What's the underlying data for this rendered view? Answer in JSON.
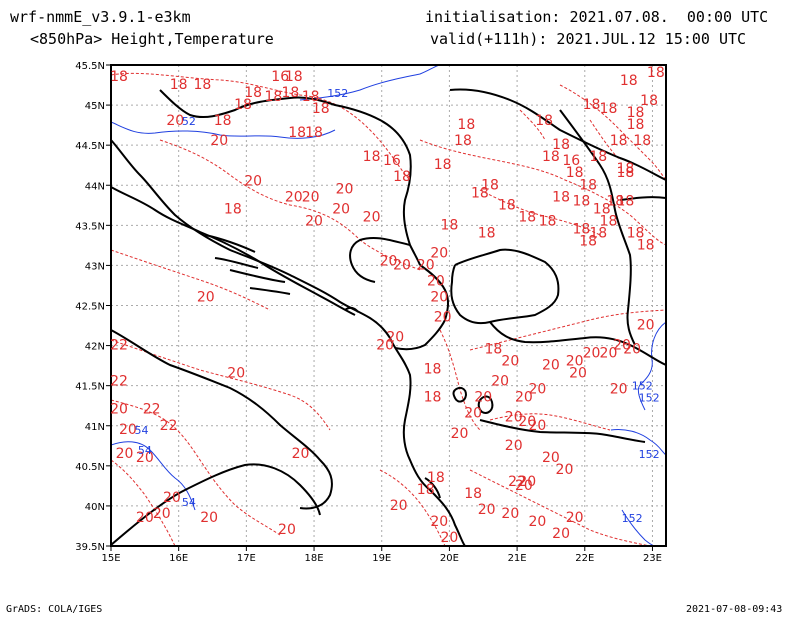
{
  "header": {
    "model": "wrf-nmmE_v3.9.1-e3km",
    "field": "<850hPa> Height,Temperature",
    "init": "initialisation: 2021.07.08.  00:00 UTC",
    "valid": "valid(+111h): 2021.JUL.12 15:00 UTC"
  },
  "footer": {
    "credit": "GrADS: COLA/IGES",
    "timestamp": "2021-07-08-09:43"
  },
  "map": {
    "lon_range": [
      15,
      23.2
    ],
    "lat_range": [
      39.5,
      45.5
    ],
    "lon_ticks": [
      "15E",
      "16E",
      "17E",
      "18E",
      "19E",
      "20E",
      "21E",
      "22E",
      "23E"
    ],
    "lat_ticks": [
      "39.5N",
      "40N",
      "40.5N",
      "41N",
      "41.5N",
      "42N",
      "42.5N",
      "43N",
      "43.5N",
      "44N",
      "44.5N",
      "45N",
      "45.5N"
    ],
    "temperature_color": "#e03030",
    "height_color": "#2040e0",
    "coast_color": "#000000"
  },
  "labels_temp": [
    {
      "t": "18",
      "lon": 15.05,
      "lat": 45.3
    },
    {
      "t": "18",
      "lon": 16.0,
      "lat": 45.2
    },
    {
      "t": "18",
      "lon": 16.35,
      "lat": 45.2
    },
    {
      "t": "16",
      "lon": 17.5,
      "lat": 45.3
    },
    {
      "t": "18",
      "lon": 17.7,
      "lat": 45.3
    },
    {
      "t": "18",
      "lon": 17.1,
      "lat": 45.1
    },
    {
      "t": "18",
      "lon": 17.4,
      "lat": 45.05
    },
    {
      "t": "18",
      "lon": 17.65,
      "lat": 45.1
    },
    {
      "t": "18",
      "lon": 17.95,
      "lat": 45.05
    },
    {
      "t": "18",
      "lon": 16.95,
      "lat": 44.95
    },
    {
      "t": "18",
      "lon": 18.1,
      "lat": 44.9
    },
    {
      "t": "18",
      "lon": 16.65,
      "lat": 44.75
    },
    {
      "t": "18",
      "lon": 17.75,
      "lat": 44.6
    },
    {
      "t": "18",
      "lon": 18.0,
      "lat": 44.6
    },
    {
      "t": "20",
      "lon": 15.95,
      "lat": 44.75
    },
    {
      "t": "20",
      "lon": 16.6,
      "lat": 44.5
    },
    {
      "t": "20",
      "lon": 17.1,
      "lat": 44.0
    },
    {
      "t": "18",
      "lon": 18.85,
      "lat": 44.3
    },
    {
      "t": "16",
      "lon": 19.15,
      "lat": 44.25
    },
    {
      "t": "18",
      "lon": 19.3,
      "lat": 44.05
    },
    {
      "t": "18",
      "lon": 20.25,
      "lat": 44.7
    },
    {
      "t": "18",
      "lon": 20.2,
      "lat": 44.5
    },
    {
      "t": "18",
      "lon": 19.9,
      "lat": 44.2
    },
    {
      "t": "18",
      "lon": 20.45,
      "lat": 43.85
    },
    {
      "t": "18",
      "lon": 20.6,
      "lat": 43.95
    },
    {
      "t": "20",
      "lon": 17.7,
      "lat": 43.8
    },
    {
      "t": "20",
      "lon": 17.95,
      "lat": 43.8
    },
    {
      "t": "20",
      "lon": 18.45,
      "lat": 43.9
    },
    {
      "t": "20",
      "lon": 18.4,
      "lat": 43.65
    },
    {
      "t": "20",
      "lon": 18.0,
      "lat": 43.5
    },
    {
      "t": "20",
      "lon": 18.85,
      "lat": 43.55
    },
    {
      "t": "18",
      "lon": 16.8,
      "lat": 43.65
    },
    {
      "t": "20",
      "lon": 19.85,
      "lat": 43.1
    },
    {
      "t": "20",
      "lon": 19.1,
      "lat": 43.0
    },
    {
      "t": "20",
      "lon": 19.3,
      "lat": 42.95
    },
    {
      "t": "20",
      "lon": 19.65,
      "lat": 42.95
    },
    {
      "t": "20",
      "lon": 19.8,
      "lat": 42.75
    },
    {
      "t": "20",
      "lon": 19.85,
      "lat": 42.55
    },
    {
      "t": "20",
      "lon": 19.9,
      "lat": 42.3
    },
    {
      "t": "20",
      "lon": 16.4,
      "lat": 42.55
    },
    {
      "t": "20",
      "lon": 19.2,
      "lat": 42.05
    },
    {
      "t": "22",
      "lon": 15.05,
      "lat": 41.95
    },
    {
      "t": "22",
      "lon": 15.1,
      "lat": 41.5
    },
    {
      "t": "20",
      "lon": 16.85,
      "lat": 41.6
    },
    {
      "t": "20",
      "lon": 15.1,
      "lat": 41.15
    },
    {
      "t": "22",
      "lon": 15.6,
      "lat": 41.15
    },
    {
      "t": "20",
      "lon": 15.25,
      "lat": 40.9
    },
    {
      "t": "22",
      "lon": 15.85,
      "lat": 40.95
    },
    {
      "t": "20",
      "lon": 15.2,
      "lat": 40.6
    },
    {
      "t": "20",
      "lon": 15.5,
      "lat": 40.55
    },
    {
      "t": "20",
      "lon": 17.8,
      "lat": 40.6
    },
    {
      "t": "20",
      "lon": 15.9,
      "lat": 40.05
    },
    {
      "t": "20",
      "lon": 15.75,
      "lat": 39.85
    },
    {
      "t": "20",
      "lon": 15.5,
      "lat": 39.8
    },
    {
      "t": "20",
      "lon": 16.45,
      "lat": 39.8
    },
    {
      "t": "20",
      "lon": 17.6,
      "lat": 39.65
    },
    {
      "t": "18",
      "lon": 19.75,
      "lat": 41.65
    },
    {
      "t": "18",
      "lon": 20.65,
      "lat": 41.9
    },
    {
      "t": "18",
      "lon": 19.75,
      "lat": 41.3
    },
    {
      "t": "20",
      "lon": 20.5,
      "lat": 41.3
    },
    {
      "t": "20",
      "lon": 20.75,
      "lat": 41.5
    },
    {
      "t": "20",
      "lon": 20.9,
      "lat": 41.75
    },
    {
      "t": "20",
      "lon": 20.35,
      "lat": 41.1
    },
    {
      "t": "20",
      "lon": 21.1,
      "lat": 41.3
    },
    {
      "t": "20",
      "lon": 21.3,
      "lat": 41.4
    },
    {
      "t": "20",
      "lon": 21.5,
      "lat": 41.7
    },
    {
      "t": "20",
      "lon": 20.95,
      "lat": 41.05
    },
    {
      "t": "20",
      "lon": 21.15,
      "lat": 41.0
    },
    {
      "t": "20",
      "lon": 21.3,
      "lat": 40.95
    },
    {
      "t": "20",
      "lon": 20.95,
      "lat": 40.7
    },
    {
      "t": "20",
      "lon": 21.5,
      "lat": 40.55
    },
    {
      "t": "20",
      "lon": 21.7,
      "lat": 40.4
    },
    {
      "t": "20",
      "lon": 21.1,
      "lat": 40.2
    },
    {
      "t": "20",
      "lon": 22.1,
      "lat": 41.85
    },
    {
      "t": "20",
      "lon": 22.35,
      "lat": 41.85
    },
    {
      "t": "20",
      "lon": 22.55,
      "lat": 41.95
    },
    {
      "t": "20",
      "lon": 21.85,
      "lat": 41.75
    },
    {
      "t": "20",
      "lon": 21.9,
      "lat": 41.6
    },
    {
      "t": "20",
      "lon": 22.7,
      "lat": 41.9
    },
    {
      "t": "20",
      "lon": 22.9,
      "lat": 42.2
    },
    {
      "t": "20",
      "lon": 22.5,
      "lat": 41.4
    },
    {
      "t": "18",
      "lon": 19.8,
      "lat": 40.3
    },
    {
      "t": "18",
      "lon": 19.65,
      "lat": 40.15
    },
    {
      "t": "18",
      "lon": 20.35,
      "lat": 40.1
    },
    {
      "t": "20",
      "lon": 19.25,
      "lat": 39.95
    },
    {
      "t": "20",
      "lon": 19.85,
      "lat": 39.75
    },
    {
      "t": "20",
      "lon": 20.0,
      "lat": 39.55
    },
    {
      "t": "20",
      "lon": 20.55,
      "lat": 39.9
    },
    {
      "t": "20",
      "lon": 20.9,
      "lat": 39.85
    },
    {
      "t": "20",
      "lon": 21.3,
      "lat": 39.75
    },
    {
      "t": "20",
      "lon": 21.85,
      "lat": 39.8
    },
    {
      "t": "20",
      "lon": 21.65,
      "lat": 39.6
    },
    {
      "t": "22",
      "lon": 21.0,
      "lat": 40.25
    },
    {
      "t": "20",
      "lon": 21.15,
      "lat": 40.25
    },
    {
      "t": "18",
      "lon": 21.4,
      "lat": 44.75
    },
    {
      "t": "18",
      "lon": 21.65,
      "lat": 44.45
    },
    {
      "t": "18",
      "lon": 21.5,
      "lat": 44.3
    },
    {
      "t": "16",
      "lon": 21.8,
      "lat": 44.25
    },
    {
      "t": "18",
      "lon": 22.2,
      "lat": 44.3
    },
    {
      "t": "18",
      "lon": 21.85,
      "lat": 44.1
    },
    {
      "t": "18",
      "lon": 22.6,
      "lat": 44.15
    },
    {
      "t": "18",
      "lon": 22.05,
      "lat": 43.95
    },
    {
      "t": "18",
      "lon": 21.65,
      "lat": 43.8
    },
    {
      "t": "18",
      "lon": 21.95,
      "lat": 43.75
    },
    {
      "t": "18",
      "lon": 22.25,
      "lat": 43.65
    },
    {
      "t": "18",
      "lon": 22.45,
      "lat": 43.75
    },
    {
      "t": "18",
      "lon": 22.35,
      "lat": 43.5
    },
    {
      "t": "18",
      "lon": 21.95,
      "lat": 43.4
    },
    {
      "t": "18",
      "lon": 21.45,
      "lat": 43.5
    },
    {
      "t": "18",
      "lon": 22.05,
      "lat": 43.25
    },
    {
      "t": "18",
      "lon": 22.2,
      "lat": 43.35
    },
    {
      "t": "18",
      "lon": 22.6,
      "lat": 43.75
    },
    {
      "t": "18",
      "lon": 22.75,
      "lat": 43.35
    },
    {
      "t": "18",
      "lon": 22.9,
      "lat": 43.2
    },
    {
      "t": "18",
      "lon": 21.15,
      "lat": 43.55
    },
    {
      "t": "18",
      "lon": 22.1,
      "lat": 44.95
    },
    {
      "t": "18",
      "lon": 22.35,
      "lat": 44.9
    },
    {
      "t": "18",
      "lon": 22.5,
      "lat": 44.5
    },
    {
      "t": "18",
      "lon": 22.75,
      "lat": 44.7
    },
    {
      "t": "18",
      "lon": 22.85,
      "lat": 44.5
    },
    {
      "t": "18",
      "lon": 22.95,
      "lat": 45.0
    },
    {
      "t": "18",
      "lon": 22.65,
      "lat": 45.25
    },
    {
      "t": "18",
      "lon": 23.05,
      "lat": 45.35
    },
    {
      "t": "18",
      "lon": 22.75,
      "lat": 44.85
    },
    {
      "t": "18",
      "lon": 22.6,
      "lat": 44.1
    },
    {
      "t": "18",
      "lon": 20.0,
      "lat": 43.45
    },
    {
      "t": "18",
      "lon": 20.55,
      "lat": 43.35
    },
    {
      "t": "18",
      "lon": 20.85,
      "lat": 43.7
    },
    {
      "t": "20",
      "lon": 19.05,
      "lat": 41.95
    },
    {
      "t": "20",
      "lon": 20.15,
      "lat": 40.85
    }
  ],
  "labels_height": [
    {
      "t": "152",
      "lon": 18.35,
      "lat": 45.1
    },
    {
      "t": "52",
      "lon": 16.15,
      "lat": 44.75
    },
    {
      "t": "152",
      "lon": 22.85,
      "lat": 41.45
    },
    {
      "t": "152",
      "lon": 22.95,
      "lat": 41.3
    },
    {
      "t": "152",
      "lon": 22.95,
      "lat": 40.6
    },
    {
      "t": "152",
      "lon": 22.7,
      "lat": 39.8
    },
    {
      "t": "54",
      "lon": 15.45,
      "lat": 40.9
    },
    {
      "t": "54",
      "lon": 15.5,
      "lat": 40.65
    },
    {
      "t": "54",
      "lon": 16.15,
      "lat": 40.0
    }
  ]
}
